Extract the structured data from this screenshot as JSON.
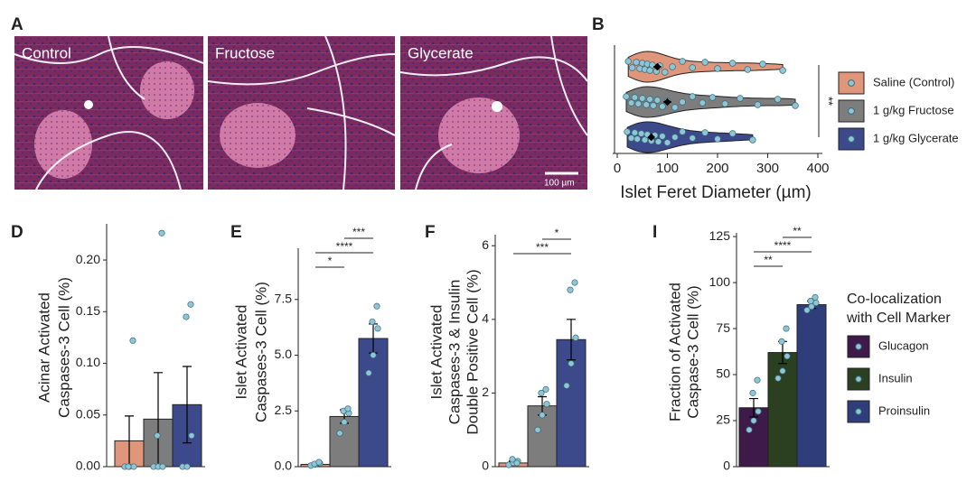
{
  "panel_a": {
    "panel": "A",
    "labels": [
      "Control",
      "Fructose",
      "Glycerate"
    ],
    "scale_bar": "100 µm"
  },
  "chart_data": [
    {
      "type": "violin",
      "panel": "B",
      "xlabel": "Islet Feret Diameter (µm)",
      "xlim": [
        0,
        400
      ],
      "xticks": [
        0,
        100,
        200,
        300,
        400
      ],
      "significance": "**",
      "series": [
        {
          "name": "Saline (Control)",
          "color": "#e0967a",
          "mean": 80,
          "sem": 8,
          "values": [
            22,
            30,
            38,
            45,
            50,
            55,
            60,
            65,
            70,
            78,
            85,
            95,
            110,
            130,
            150,
            175,
            200,
            230,
            260,
            290,
            330
          ]
        },
        {
          "name": "1 g/kg Fructose",
          "color": "#7d7d7d",
          "mean": 100,
          "sem": 8,
          "values": [
            18,
            28,
            35,
            42,
            50,
            58,
            65,
            72,
            80,
            90,
            100,
            115,
            130,
            150,
            170,
            190,
            215,
            245,
            280,
            320,
            355
          ]
        },
        {
          "name": "1 g/kg Glycerate",
          "color": "#3c4a8c",
          "mean": 68,
          "sem": 6,
          "values": [
            20,
            28,
            35,
            40,
            48,
            55,
            60,
            68,
            75,
            82,
            90,
            100,
            115,
            130,
            150,
            175,
            200,
            230,
            270
          ]
        }
      ]
    },
    {
      "type": "bar",
      "panel": "D",
      "ylabel": [
        "Acinar Activated",
        "Caspases-3 Cell (%)"
      ],
      "ylim": [
        0,
        0.235
      ],
      "yticks": [
        {
          "value": 0,
          "label": "0.00"
        },
        0.05,
        {
          "value": 0.1,
          "label": "0.10"
        },
        0.15,
        {
          "value": 0.2,
          "label": "0.20"
        }
      ],
      "series": [
        {
          "color": "#e0967a",
          "values": [
            0.025
          ],
          "errors": [
            0.024
          ],
          "points": [
            0,
            0,
            0,
            0,
            0.122
          ]
        },
        {
          "color": "#7d7d7d",
          "values": [
            0.046
          ],
          "errors": [
            0.045
          ],
          "points": [
            0,
            0,
            0,
            0.03,
            0.226
          ]
        },
        {
          "color": "#3c4a8c",
          "values": [
            0.06
          ],
          "errors": [
            0.037
          ],
          "points": [
            0,
            0,
            0.03,
            0.145,
            0.157
          ]
        }
      ],
      "comparisons": []
    },
    {
      "type": "bar",
      "panel": "E",
      "ylabel": [
        "Islet Activated",
        "Caspases-3 Cell (%)"
      ],
      "ylim": [
        0,
        9.8
      ],
      "yticks": [
        {
          "value": 0,
          "label": "0.0"
        },
        2.5,
        {
          "value": 5,
          "label": "5.0"
        },
        7.5
      ],
      "series": [
        {
          "color": "#e0967a",
          "values": [
            0.1
          ],
          "errors": [
            0.05
          ],
          "points": [
            0.05,
            0.1,
            0.15,
            0.12,
            0.2
          ]
        },
        {
          "color": "#7d7d7d",
          "values": [
            2.25
          ],
          "errors": [
            0.3
          ],
          "points": [
            1.5,
            2.0,
            2.4,
            2.5,
            2.6
          ]
        },
        {
          "color": "#3c4a8c",
          "values": [
            5.75
          ],
          "errors": [
            0.65
          ],
          "points": [
            4.2,
            5.0,
            6.2,
            6.5,
            7.2
          ]
        }
      ],
      "comparisons": [
        {
          "from": 1,
          "to": 2,
          "label": "***"
        },
        {
          "from": 0,
          "to": 2,
          "label": "****"
        },
        {
          "from": 0,
          "to": 1,
          "label": "*"
        }
      ]
    },
    {
      "type": "bar",
      "panel": "F",
      "ylabel": [
        "Islet Activated",
        "Caspases-3 & Insulin",
        "Double Positive Cell (%)"
      ],
      "ylim": [
        0,
        6.3
      ],
      "yticks": [
        0,
        2,
        4,
        6
      ],
      "series": [
        {
          "color": "#e0967a",
          "values": [
            0.1
          ],
          "errors": [
            0.05
          ],
          "points": [
            0.05,
            0.1,
            0.15,
            0.2,
            0.1
          ]
        },
        {
          "color": "#7d7d7d",
          "values": [
            1.65
          ],
          "errors": [
            0.25
          ],
          "points": [
            1.0,
            1.4,
            1.7,
            2.0,
            2.1
          ]
        },
        {
          "color": "#3c4a8c",
          "values": [
            3.45
          ],
          "errors": [
            0.55
          ],
          "points": [
            2.2,
            2.8,
            3.5,
            4.8,
            5.0
          ]
        }
      ],
      "comparisons": [
        {
          "from": 1,
          "to": 2,
          "label": "*"
        },
        {
          "from": 0,
          "to": 2,
          "label": "***"
        }
      ]
    },
    {
      "type": "bar",
      "panel": "I",
      "ylabel": [
        "Fraction of Activated",
        "Caspase-3 Cell (%)"
      ],
      "ylim": [
        0,
        127
      ],
      "yticks": [
        0,
        25,
        50,
        75,
        100,
        125
      ],
      "legend_title": [
        "Co-localization",
        "with Cell Marker"
      ],
      "series": [
        {
          "name": "Glucagon",
          "color": "#3d1a4a",
          "values": [
            32
          ],
          "errors": [
            5
          ],
          "points": [
            20,
            25,
            30,
            40,
            47
          ]
        },
        {
          "name": "Insulin",
          "color": "#2a4020",
          "values": [
            62
          ],
          "errors": [
            6
          ],
          "points": [
            48,
            52,
            60,
            68,
            75
          ]
        },
        {
          "name": "Proinsulin",
          "color": "#2f3d7a",
          "values": [
            88
          ],
          "errors": [
            2
          ],
          "points": [
            85,
            87,
            89,
            90,
            92
          ]
        }
      ],
      "comparisons": [
        {
          "from": 1,
          "to": 2,
          "label": "**"
        },
        {
          "from": 0,
          "to": 2,
          "label": "****"
        },
        {
          "from": 0,
          "to": 1,
          "label": "**"
        }
      ]
    }
  ]
}
